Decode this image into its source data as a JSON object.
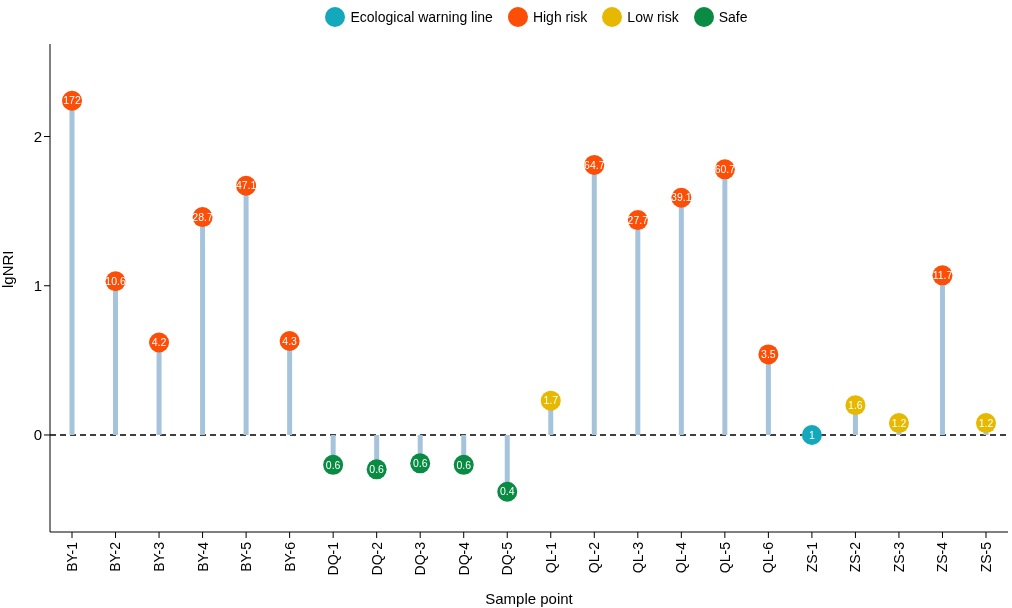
{
  "chart_data": {
    "type": "lollipop",
    "xlabel": "Sample point",
    "ylabel": "lgNRI",
    "categories": [
      "BY-1",
      "BY-2",
      "BY-3",
      "BY-4",
      "BY-5",
      "BY-6",
      "DQ-1",
      "DQ-2",
      "DQ-3",
      "DQ-4",
      "DQ-5",
      "QL-1",
      "QL-2",
      "QL-3",
      "QL-4",
      "QL-5",
      "QL-6",
      "ZS-1",
      "ZS-2",
      "ZS-3",
      "ZS-4",
      "ZS-5"
    ],
    "series": [
      {
        "name": "Ecological warning line",
        "color": "#13a8bb",
        "values": [
          null,
          null,
          null,
          null,
          null,
          null,
          null,
          null,
          null,
          null,
          null,
          null,
          null,
          null,
          null,
          null,
          null,
          0,
          null,
          null,
          null,
          null
        ]
      },
      {
        "name": "High risk",
        "color": "#fc4e07",
        "values": [
          2.24,
          1.03,
          0.62,
          1.46,
          1.67,
          0.63,
          null,
          null,
          null,
          null,
          null,
          null,
          1.81,
          1.44,
          1.59,
          1.78,
          0.54,
          null,
          null,
          null,
          1.07,
          null
        ]
      },
      {
        "name": "Low risk",
        "color": "#e7b800",
        "values": [
          null,
          null,
          null,
          null,
          null,
          null,
          null,
          null,
          null,
          null,
          null,
          0.23,
          null,
          null,
          null,
          null,
          null,
          null,
          0.2,
          0.08,
          null,
          0.08
        ]
      },
      {
        "name": "Safe",
        "color": "#0a8b44",
        "values": [
          null,
          null,
          null,
          null,
          null,
          null,
          -0.2,
          -0.23,
          -0.19,
          -0.2,
          -0.38,
          null,
          null,
          null,
          null,
          null,
          null,
          null,
          null,
          null,
          null,
          null
        ]
      }
    ],
    "annotations": [
      {
        "text": "172",
        "x": "BY-1",
        "y": 2.24
      },
      {
        "text": "10.6",
        "x": "BY-2",
        "y": 1.03
      },
      {
        "text": "4.2",
        "x": "BY-3",
        "y": 0.62
      },
      {
        "text": "28.7",
        "x": "BY-4",
        "y": 1.46
      },
      {
        "text": "47.1",
        "x": "BY-5",
        "y": 1.67
      },
      {
        "text": "4.3",
        "x": "BY-6",
        "y": 0.63
      },
      {
        "text": "0.6",
        "x": "DQ-1",
        "y": -0.2
      },
      {
        "text": "0.6",
        "x": "DQ-2",
        "y": -0.23
      },
      {
        "text": "0.6",
        "x": "DQ-3",
        "y": -0.19
      },
      {
        "text": "0.6",
        "x": "DQ-4",
        "y": -0.2
      },
      {
        "text": "0.4",
        "x": "DQ-5",
        "y": -0.38
      },
      {
        "text": "1.7",
        "x": "QL-1",
        "y": 0.23
      },
      {
        "text": "64.7",
        "x": "QL-2",
        "y": 1.81
      },
      {
        "text": "27.7",
        "x": "QL-3",
        "y": 1.44
      },
      {
        "text": "39.1",
        "x": "QL-4",
        "y": 1.59
      },
      {
        "text": "60.7",
        "x": "QL-5",
        "y": 1.78
      },
      {
        "text": "3.5",
        "x": "QL-6",
        "y": 0.54
      },
      {
        "text": "1",
        "x": "ZS-1",
        "y": 0
      },
      {
        "text": "1.6",
        "x": "ZS-2",
        "y": 0.2
      },
      {
        "text": "1.2",
        "x": "ZS-3",
        "y": 0.08
      },
      {
        "text": "11.7",
        "x": "ZS-4",
        "y": 1.07
      },
      {
        "text": "1.2",
        "x": "ZS-5",
        "y": 0.08
      }
    ],
    "ylim": [
      -0.65,
      2.62
    ],
    "yticks": [
      0,
      1,
      2
    ],
    "grid": false,
    "legend": "top",
    "marker": "circle",
    "ref_lines": [
      {
        "axis": "y",
        "value": 0,
        "line_style": "dashed",
        "color": "#000000"
      }
    ]
  }
}
